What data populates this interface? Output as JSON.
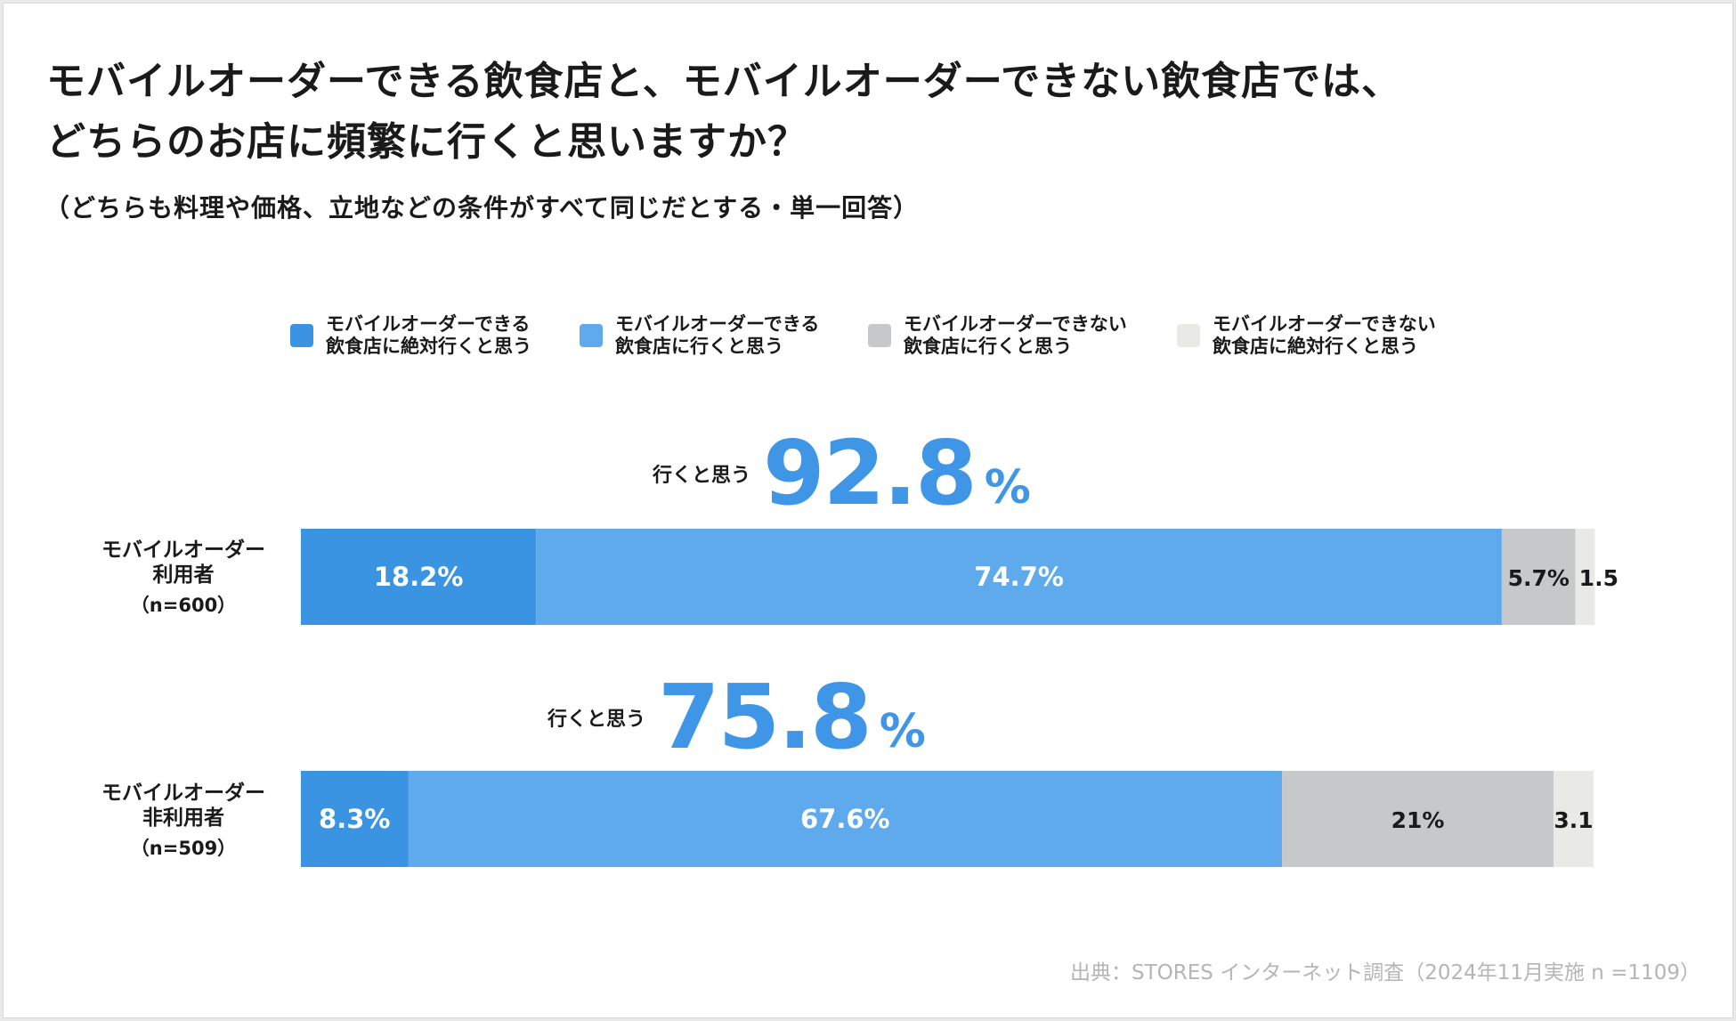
{
  "title": {
    "line1": "モバイルオーダーできる飲食店と、モバイルオーダーできない飲食店では、",
    "line2": "どちらのお店に頻繁に行くと思いますか？",
    "subtitle": "（どちらも料理や価格、立地などの条件がすべて同じだとする・単一回答）"
  },
  "colors": {
    "series1": "#3a94e2",
    "series2": "#5eaaed",
    "series3": "#c6c8c9",
    "series4": "#e9e9e6",
    "accent": "#3f95e6",
    "label_light": "#ffffff",
    "label_dark": "#1a1a1a"
  },
  "legend": [
    {
      "line1": "モバイルオーダーできる",
      "line2": "飲食店に絶対行くと思う"
    },
    {
      "line1": "モバイルオーダーできる",
      "line2": "飲食店に行くと思う"
    },
    {
      "line1": "モバイルオーダーできない",
      "line2": "飲食店に行くと思う"
    },
    {
      "line1": "モバイルオーダーできない",
      "line2": "飲食店に絶対行くと思う"
    }
  ],
  "rows": [
    {
      "label1": "モバイルオーダー",
      "label2": "利用者",
      "n": "（n=600）",
      "headline_label": "行くと思う",
      "headline_value": "92.8",
      "headline_pct": "%"
    },
    {
      "label1": "モバイルオーダー",
      "label2": "非利用者",
      "n": "（n=509）",
      "headline_label": "行くと思う",
      "headline_value": "75.8",
      "headline_pct": "%"
    }
  ],
  "chart_data": {
    "type": "bar",
    "orientation": "horizontal",
    "stacked": true,
    "percent": true,
    "categories": [
      "モバイルオーダー利用者（n=600）",
      "モバイルオーダー非利用者（n=509）"
    ],
    "series": [
      {
        "name": "モバイルオーダーできる飲食店に絶対行くと思う",
        "values": [
          18.2,
          8.3
        ],
        "labels": [
          "18.2%",
          "8.3%"
        ]
      },
      {
        "name": "モバイルオーダーできる飲食店に行くと思う",
        "values": [
          74.7,
          67.6
        ],
        "labels": [
          "74.7%",
          "67.6%"
        ]
      },
      {
        "name": "モバイルオーダーできない飲食店に行くと思う",
        "values": [
          5.7,
          21
        ],
        "labels": [
          "5.7%",
          "21%"
        ]
      },
      {
        "name": "モバイルオーダーできない飲食店に絶対行くと思う",
        "values": [
          1.5,
          3.1
        ],
        "labels": [
          "1.5",
          "3.1"
        ]
      }
    ],
    "xlim": [
      0,
      100
    ],
    "legend_position": "top"
  },
  "source": "出典：STORES インターネット調査（2024年11月実施 n =1109）"
}
